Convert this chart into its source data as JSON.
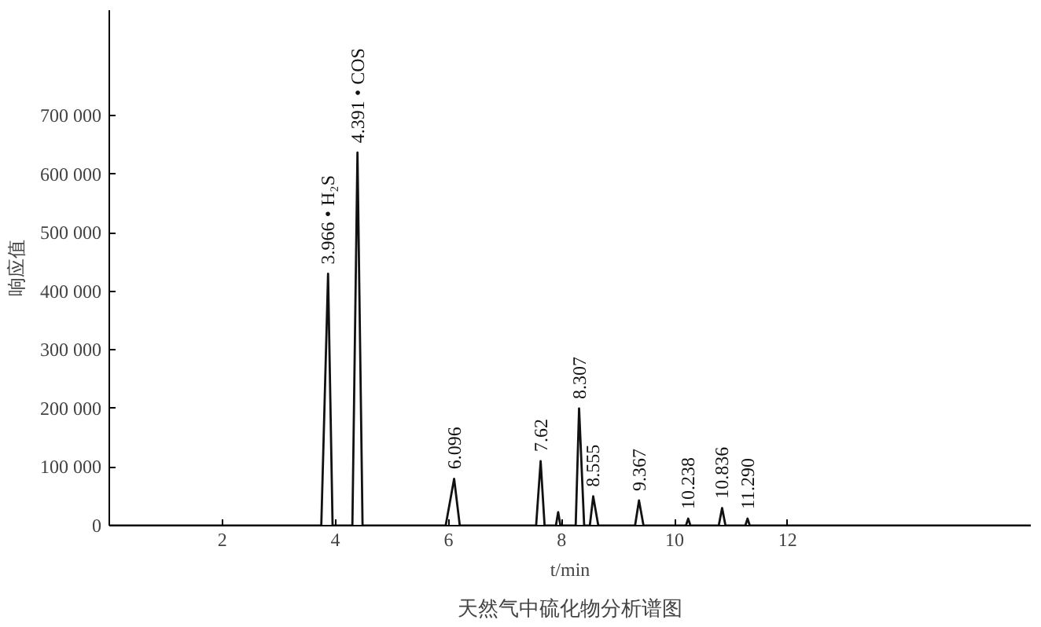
{
  "chart_data": {
    "type": "line",
    "title": "天然气中硫化物分析谱图",
    "xlabel": "t/min",
    "ylabel": "响应值",
    "x": [
      0,
      3.75,
      3.87,
      3.95,
      4.3,
      4.39,
      4.48,
      5.95,
      6.1,
      6.2,
      7.55,
      7.63,
      7.7,
      7.9,
      7.94,
      7.98,
      8.25,
      8.31,
      8.4,
      8.5,
      8.56,
      8.65,
      9.3,
      9.37,
      9.45,
      10.2,
      10.24,
      10.28,
      10.78,
      10.84,
      10.9,
      11.25,
      11.29,
      11.33,
      16.3
    ],
    "series": [
      {
        "color": "#111111",
        "values": [
          0,
          0,
          430000,
          0,
          0,
          637000,
          0,
          0,
          80000,
          0,
          0,
          110000,
          0,
          0,
          23000,
          0,
          0,
          200000,
          0,
          0,
          50000,
          0,
          0,
          43000,
          0,
          0,
          12000,
          0,
          0,
          30000,
          0,
          0,
          12000,
          0,
          0
        ]
      }
    ],
    "xlim": [
      0,
      16.3
    ],
    "ylim": [
      0,
      880000
    ],
    "xticks": [
      2,
      4,
      6,
      8,
      10,
      12
    ],
    "yticks": [
      {
        "value": 0,
        "label": "0"
      },
      {
        "value": 100000,
        "label": "100 000"
      },
      {
        "value": 200000,
        "label": "200 000"
      },
      {
        "value": 300000,
        "label": "300 000"
      },
      {
        "value": 400000,
        "label": "400 000"
      },
      {
        "value": 500000,
        "label": "500 000"
      },
      {
        "value": 600000,
        "label": "600 000"
      },
      {
        "value": 700000,
        "label": "700 000"
      }
    ],
    "annotations": [
      {
        "text": "3.966 • H₂S",
        "x": 3.87,
        "y": 430000
      },
      {
        "text": "4.391 • COS",
        "x": 4.39,
        "y": 637000
      },
      {
        "text": "6.096",
        "x": 6.1,
        "y": 80000
      },
      {
        "text": "7.62",
        "x": 7.63,
        "y": 110000
      },
      {
        "text": "8.307",
        "x": 8.31,
        "y": 200000
      },
      {
        "text": "8.555",
        "x": 8.56,
        "y": 50000
      },
      {
        "text": "9.367",
        "x": 9.37,
        "y": 43000
      },
      {
        "text": "10.238",
        "x": 10.24,
        "y": 12000
      },
      {
        "text": "10.836",
        "x": 10.84,
        "y": 30000
      },
      {
        "text": "11.290",
        "x": 11.29,
        "y": 12000
      }
    ],
    "grid": false,
    "marker": "none",
    "line_style": "solid"
  }
}
